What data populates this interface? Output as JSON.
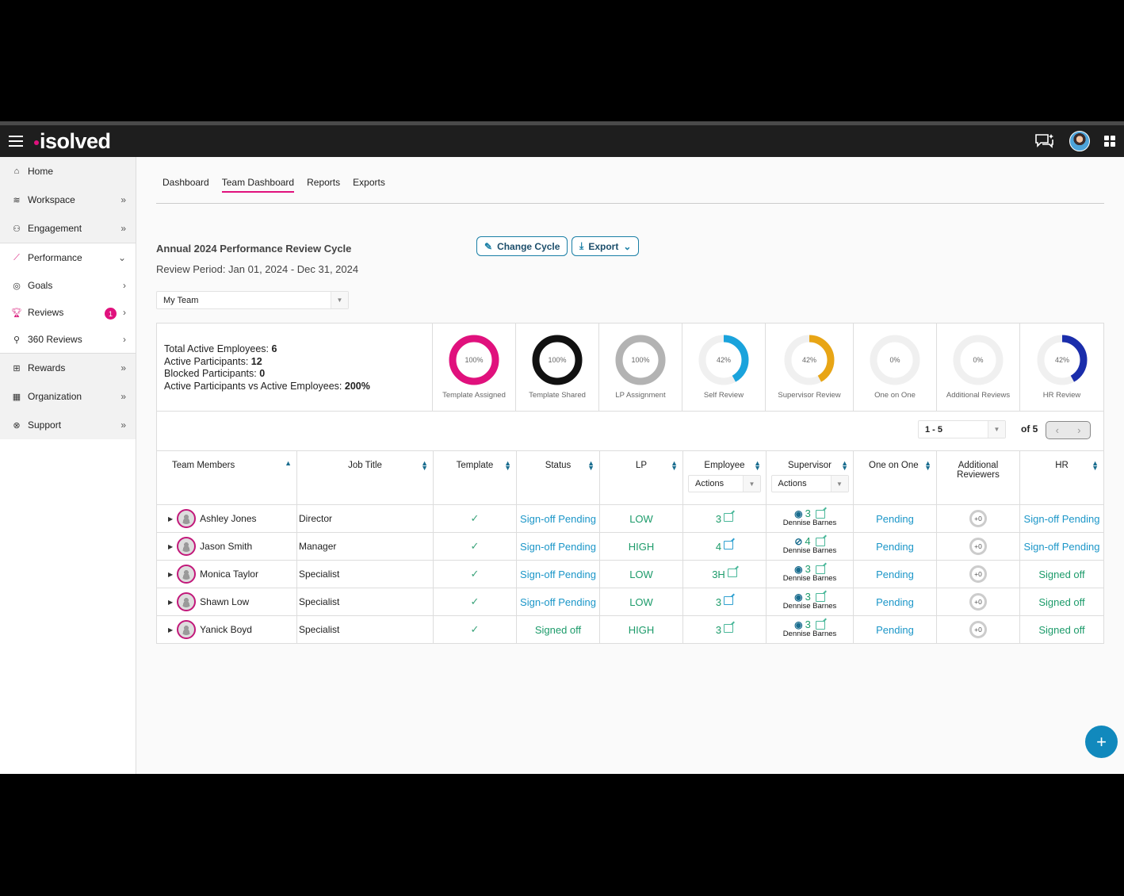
{
  "header": {
    "brand": "isolved",
    "icons": [
      "menu-icon",
      "chat-sparkle-icon",
      "user-avatar",
      "apps-grid-icon"
    ]
  },
  "sidebar": {
    "items": [
      {
        "label": "Home",
        "icon": "home-icon",
        "chevron": ""
      },
      {
        "label": "Workspace",
        "icon": "layers-icon",
        "chevron": "»"
      },
      {
        "label": "Engagement",
        "icon": "users-icon",
        "chevron": "»"
      },
      {
        "label": "Performance",
        "icon": "chart-line-icon",
        "chevron": "⌄"
      },
      {
        "label": "Goals",
        "icon": "target-icon",
        "chevron": "›"
      },
      {
        "label": "Reviews",
        "icon": "trophy-icon",
        "chevron": "›",
        "badge": "1"
      },
      {
        "label": "360 Reviews",
        "icon": "person-ring-icon",
        "chevron": "›"
      },
      {
        "label": "Rewards",
        "icon": "gift-icon",
        "chevron": "»"
      },
      {
        "label": "Organization",
        "icon": "building-icon",
        "chevron": "»"
      },
      {
        "label": "Support",
        "icon": "lifebuoy-icon",
        "chevron": "»"
      }
    ]
  },
  "tabs": [
    {
      "label": "Dashboard",
      "active": false
    },
    {
      "label": "Team Dashboard",
      "active": true
    },
    {
      "label": "Reports",
      "active": false
    },
    {
      "label": "Exports",
      "active": false
    }
  ],
  "cycle": {
    "title": "Annual 2024 Performance Review Cycle",
    "period": "Review Period: Jan 01, 2024 - Dec 31, 2024",
    "change_cycle_label": "Change Cycle",
    "export_label": "Export"
  },
  "team_select": {
    "value": "My Team"
  },
  "stats": {
    "total_active_employees_label": "Total Active Employees: ",
    "total_active_employees": "6",
    "active_participants_label": "Active Participants: ",
    "active_participants": "12",
    "blocked_participants_label": "Blocked Participants: ",
    "blocked_participants": "0",
    "ratio_label": "Active Participants vs Active Employees: ",
    "ratio": "200%"
  },
  "donuts": [
    {
      "label": "Template Assigned",
      "pct": "100%",
      "value": 100,
      "color": "#e0117d"
    },
    {
      "label": "Template Shared",
      "pct": "100%",
      "value": 100,
      "color": "#111111"
    },
    {
      "label": "LP Assignment",
      "pct": "100%",
      "value": 100,
      "color": "#b3b3b3"
    },
    {
      "label": "Self Review",
      "pct": "42%",
      "value": 42,
      "color": "#1aa3dc"
    },
    {
      "label": "Supervisor Review",
      "pct": "42%",
      "value": 42,
      "color": "#e8a515"
    },
    {
      "label": "One on One",
      "pct": "0%",
      "value": 0,
      "color": "#cccccc"
    },
    {
      "label": "Additional Reviews",
      "pct": "0%",
      "value": 0,
      "color": "#cccccc"
    },
    {
      "label": "HR Review",
      "pct": "42%",
      "value": 42,
      "color": "#1a2dab"
    }
  ],
  "pager": {
    "range": "1 - 5",
    "of": "of 5"
  },
  "table": {
    "headers": {
      "members": "Team Members",
      "job": "Job Title",
      "template": "Template",
      "status": "Status",
      "lp": "LP",
      "employee": "Employee",
      "employee_actions": "Actions",
      "supervisor": "Supervisor",
      "supervisor_actions": "Actions",
      "one_on_one": "One on One",
      "additional": "Additional Reviewers",
      "hr": "HR"
    },
    "rows": [
      {
        "name": "Ashley Jones",
        "job": "Director",
        "template": "✓",
        "status": "Sign-off Pending",
        "status_type": "blue",
        "lp": "LOW",
        "employee": "3",
        "sup_count": "3",
        "sup_visible": true,
        "sup_name": "Dennise Barnes",
        "one_on_one": "Pending",
        "additional": "+0",
        "hr": "Sign-off Pending",
        "hr_type": "blue"
      },
      {
        "name": "Jason Smith",
        "job": "Manager",
        "template": "✓",
        "status": "Sign-off Pending",
        "status_type": "blue",
        "lp": "HIGH",
        "employee": "4",
        "sup_count": "4",
        "sup_visible": false,
        "sup_name": "Dennise Barnes",
        "one_on_one": "Pending",
        "additional": "+0",
        "hr": "Sign-off Pending",
        "hr_type": "blue"
      },
      {
        "name": "Monica Taylor",
        "job": "Specialist",
        "template": "✓",
        "status": "Sign-off Pending",
        "status_type": "blue",
        "lp": "LOW",
        "employee": "3H",
        "sup_count": "3",
        "sup_visible": true,
        "sup_name": "Dennise Barnes",
        "one_on_one": "Pending",
        "additional": "+0",
        "hr": "Signed off",
        "hr_type": "green"
      },
      {
        "name": "Shawn Low",
        "job": "Specialist",
        "template": "✓",
        "status": "Sign-off Pending",
        "status_type": "blue",
        "lp": "LOW",
        "employee": "3",
        "sup_count": "3",
        "sup_visible": true,
        "sup_name": "Dennise Barnes",
        "one_on_one": "Pending",
        "additional": "+0",
        "hr": "Signed off",
        "hr_type": "green"
      },
      {
        "name": "Yanick Boyd",
        "job": "Specialist",
        "template": "✓",
        "status": "Signed off",
        "status_type": "green",
        "lp": "HIGH",
        "employee": "3",
        "sup_count": "3",
        "sup_visible": true,
        "sup_name": "Dennise Barnes",
        "one_on_one": "Pending",
        "additional": "+0",
        "hr": "Signed off",
        "hr_type": "green"
      }
    ]
  },
  "fab": {
    "label": "+"
  },
  "colors": {
    "brand_pink": "#e0117d",
    "accent_blue": "#1189bd",
    "status_blue": "#1b96c8",
    "status_green": "#1c9b6a"
  }
}
